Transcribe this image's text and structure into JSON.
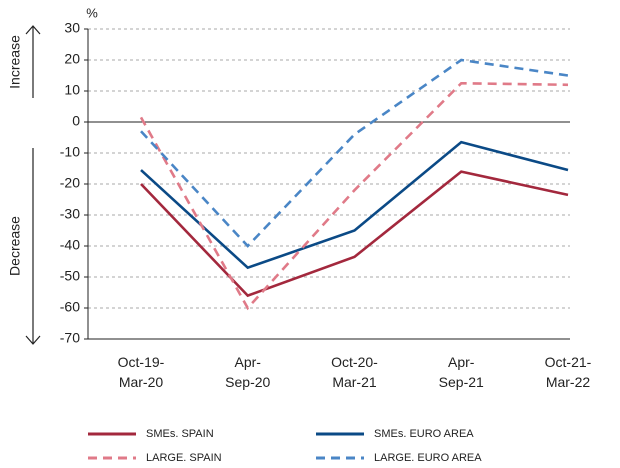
{
  "chart_data": {
    "type": "line",
    "y_unit": "%",
    "side_labels": {
      "up": "Increase",
      "down": "Decrease"
    },
    "categories": [
      "Oct-19-\nMar-20",
      "Apr-\nSep-20",
      "Oct-20-\nMar-21",
      "Apr-\nSep-21",
      "Oct-21-\nMar-22"
    ],
    "series": [
      {
        "name": "SMEs. SPAIN",
        "color": "#a3283d",
        "dash": "solid",
        "values": [
          -20,
          -56,
          -43.5,
          -16,
          -23.5
        ]
      },
      {
        "name": "SMEs. EURO AREA",
        "color": "#0b4a86",
        "dash": "solid",
        "values": [
          -15.5,
          -47,
          -35,
          -6.5,
          -15.5
        ]
      },
      {
        "name": "LARGE. SPAIN",
        "color": "#e07a88",
        "dash": "dashed",
        "values": [
          1.5,
          -60,
          -22,
          12.5,
          12
        ]
      },
      {
        "name": "LARGE. EURO AREA",
        "color": "#4a86c6",
        "dash": "dashed",
        "values": [
          -3,
          -40,
          -4,
          20,
          15
        ]
      }
    ],
    "ylim": [
      -70,
      30
    ],
    "yticks": [
      -70,
      -60,
      -50,
      -40,
      -30,
      -20,
      -10,
      0,
      10,
      20,
      30
    ],
    "grid": true
  }
}
